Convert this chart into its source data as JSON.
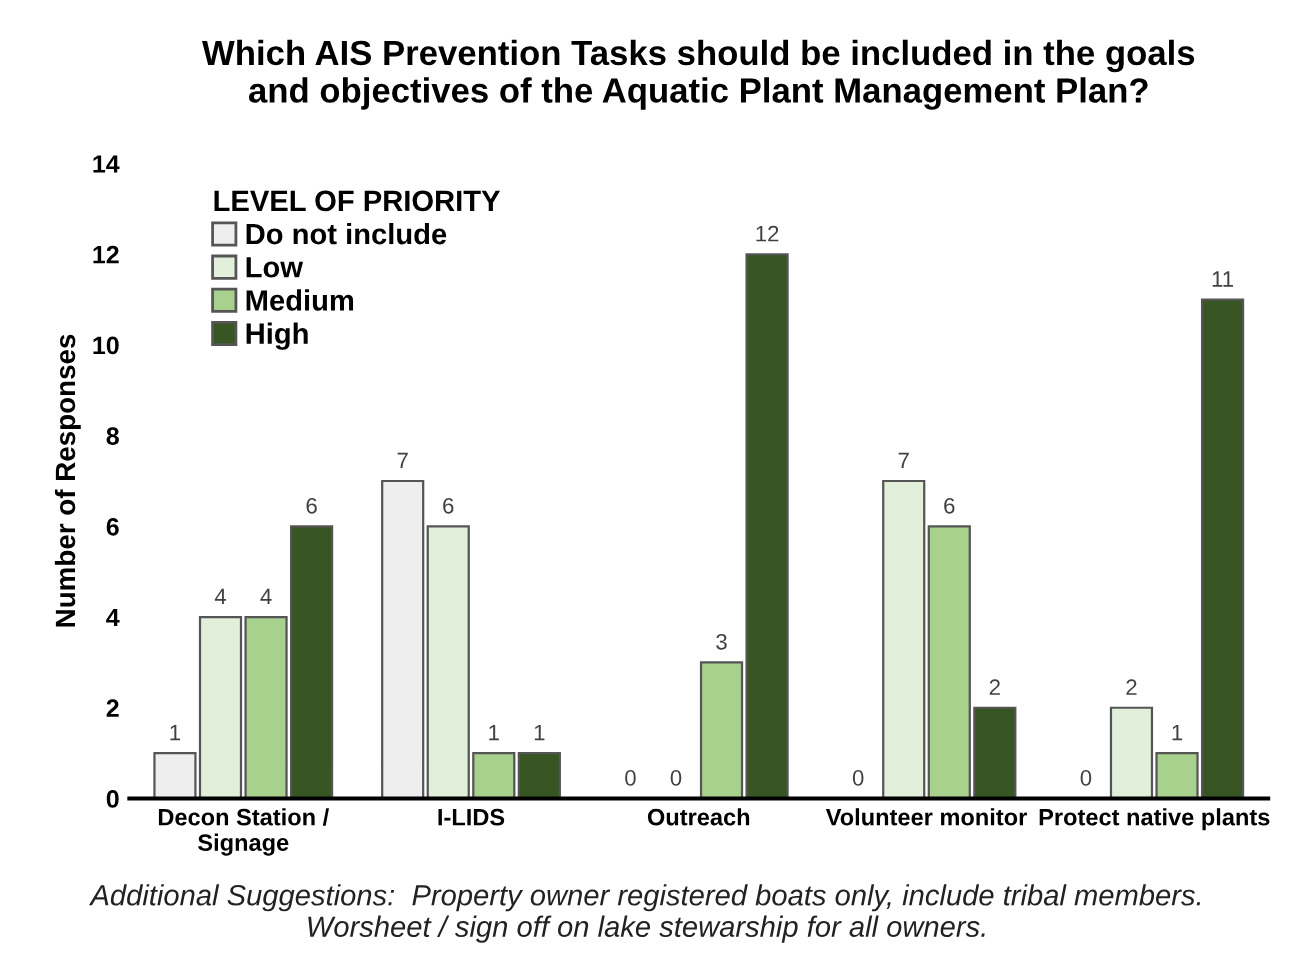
{
  "chart_data": {
    "type": "bar",
    "title": "Which AIS Prevention Tasks should be included in the goals\nand objectives of the Aquatic Plant Management Plan?",
    "ylabel": "Number of Responses",
    "categories": [
      "Decon Station /\nSignage",
      "I-LIDS",
      "Outreach",
      "Volunteer monitor",
      "Protect native plants"
    ],
    "series": [
      {
        "name": "Do not include",
        "color": "#eeeeee",
        "values": [
          1,
          7,
          0,
          0,
          0
        ]
      },
      {
        "name": "Low",
        "color": "#e2efda",
        "values": [
          4,
          6,
          0,
          7,
          2
        ]
      },
      {
        "name": "Medium",
        "color": "#a9d18e",
        "values": [
          4,
          1,
          3,
          6,
          1
        ]
      },
      {
        "name": "High",
        "color": "#375623",
        "values": [
          6,
          1,
          12,
          2,
          11
        ]
      }
    ],
    "legend_title": "LEVEL OF PRIORITY",
    "legend": "top left",
    "ylim": [
      0,
      14
    ],
    "yticks": [
      0,
      2,
      4,
      6,
      8,
      10,
      12,
      14
    ],
    "grid": false,
    "data_labels": true,
    "annotations": [
      "Additional Suggestions:  Property owner registered boats only, include tribal members.\nWorsheet / sign off on lake stewarship for all owners."
    ]
  }
}
